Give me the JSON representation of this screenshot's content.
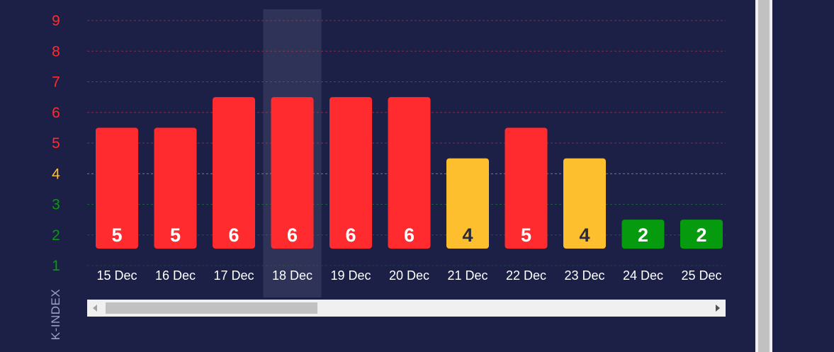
{
  "chart_data": {
    "type": "bar",
    "categories": [
      "15 Dec",
      "16 Dec",
      "17 Dec",
      "18 Dec",
      "19 Dec",
      "20 Dec",
      "21 Dec",
      "22 Dec",
      "23 Dec",
      "24 Dec",
      "25 Dec"
    ],
    "values": [
      5,
      5,
      6,
      6,
      6,
      6,
      4,
      5,
      4,
      2,
      2
    ],
    "ylabel": "K-INDEX",
    "yticks": [
      1,
      2,
      3,
      4,
      5,
      6,
      7,
      8,
      9
    ],
    "ylim": [
      1,
      9
    ],
    "grid": true,
    "highlighted_category": "18 Dec",
    "colors": {
      "storm": "#ff2b2e",
      "active": "#fdbf2d",
      "quiet": "#069a0e",
      "background": "#1c2046",
      "highlight": "#2f3357"
    }
  }
}
